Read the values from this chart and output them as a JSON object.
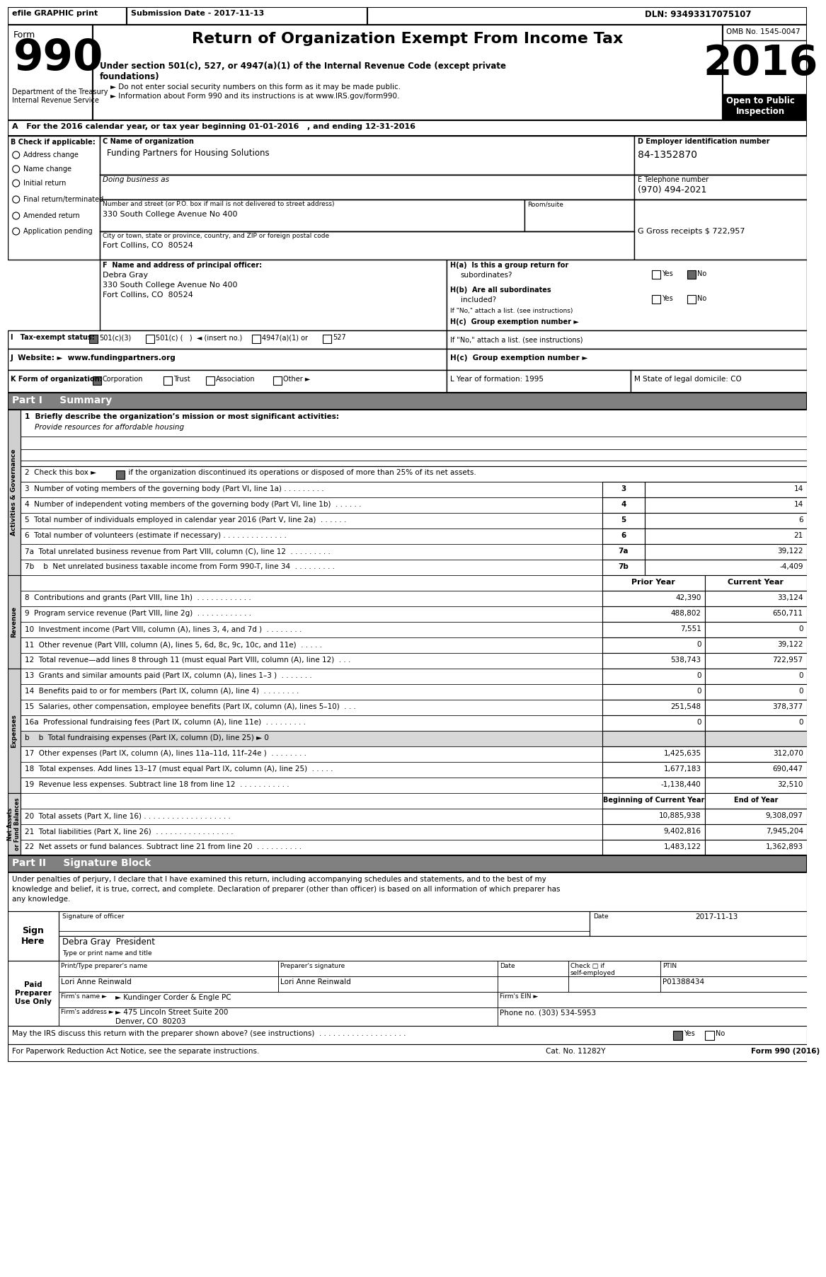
{
  "title": "Return of Organization Exempt From Income Tax",
  "subtitle_line1": "Under section 501(c), 527, or 4947(a)(1) of the Internal Revenue Code (except private",
  "subtitle_line2": "foundations)",
  "year": "2016",
  "omb": "OMB No. 1545-0047",
  "open_to_public": "Open to Public\nInspection",
  "efile_text": "efile GRAPHIC print",
  "submission_date": "Submission Date - 2017-11-13",
  "dln": "DLN: 93493317075107",
  "dept_line1": "Department of the Treasury",
  "dept_line2": "Internal Revenue Service",
  "bullet1": "► Do not enter social security numbers on this form as it may be made public.",
  "bullet2": "► Information about Form 990 and its instructions is at www.IRS.gov/form990.",
  "section_a": "A   For the 2016 calendar year, or tax year beginning 01-01-2016   , and ending 12-31-2016",
  "check_if": "B Check if applicable:",
  "checkboxes_b": [
    "Address change",
    "Name change",
    "Initial return",
    "Final return/terminated",
    "Amended return",
    "Application pending"
  ],
  "org_name_label": "C Name of organization",
  "org_name": "Funding Partners for Housing Solutions",
  "dba_label": "Doing business as",
  "address_label": "Number and street (or P.O. box if mail is not delivered to street address)",
  "room_label": "Room/suite",
  "address": "330 South College Avenue No 400",
  "city_label": "City or town, state or province, country, and ZIP or foreign postal code",
  "city": "Fort Collins, CO  80524",
  "ein_label": "D Employer identification number",
  "ein": "84-1352870",
  "phone_label": "E Telephone number",
  "phone": "(970) 494-2021",
  "gross_label": "G Gross receipts $ 722,957",
  "principal_label": "F  Name and address of principal officer:",
  "principal_name": "Debra Gray",
  "principal_addr1": "330 South College Avenue No 400",
  "principal_addr2": "Fort Collins, CO  80524",
  "ha_label": "H(a)  Is this a group return for",
  "ha_sub": "subordinates?",
  "hb_label": "H(b)  Are all subordinates",
  "hb_sub": "included?",
  "hb_note": "If \"No,\" attach a list. (see instructions)",
  "hc_label": "H(c)  Group exemption number ►",
  "tax_label": "I   Tax-exempt status:",
  "website_label": "J  Website: ►  www.fundingpartners.org",
  "form_type_label": "K Form of organization:",
  "year_form_label": "L Year of formation: 1995",
  "state_label": "M State of legal domicile: CO",
  "part1_title": "Part I     Summary",
  "line1_desc": "1  Briefly describe the organization’s mission or most significant activities:",
  "line1_val": "Provide resources for affordable housing",
  "line2_text": "2  Check this box ►",
  "line2_rest": " if the organization discontinued its operations or disposed of more than 25% of its net assets.",
  "lines_gov": [
    {
      "num": "3",
      "label": "Number of voting members of the governing body (Part VI, line 1a) . . . . . . . . .",
      "val": "14"
    },
    {
      "num": "4",
      "label": "Number of independent voting members of the governing body (Part VI, line 1b)  . . . . . .",
      "val": "14"
    },
    {
      "num": "5",
      "label": "Total number of individuals employed in calendar year 2016 (Part V, line 2a)  . . . . . .",
      "val": "6"
    },
    {
      "num": "6",
      "label": "Total number of volunteers (estimate if necessary) . . . . . . . . . . . . . .",
      "val": "21"
    },
    {
      "num": "7a",
      "label": "Total unrelated business revenue from Part VIII, column (C), line 12  . . . . . . . . .",
      "val": "39,122"
    },
    {
      "num": "7b",
      "label": "  b  Net unrelated business taxable income from Form 990-T, line 34  . . . . . . . . .",
      "val": "-4,409"
    }
  ],
  "rev_lines": [
    {
      "num": "8",
      "label": "Contributions and grants (Part VIII, line 1h)  . . . . . . . . . . . .",
      "prior": "42,390",
      "curr": "33,124"
    },
    {
      "num": "9",
      "label": "Program service revenue (Part VIII, line 2g)  . . . . . . . . . . . .",
      "prior": "488,802",
      "curr": "650,711"
    },
    {
      "num": "10",
      "label": "Investment income (Part VIII, column (A), lines 3, 4, and 7d )  . . . . . . . .",
      "prior": "7,551",
      "curr": "0"
    },
    {
      "num": "11",
      "label": "Other revenue (Part VIII, column (A), lines 5, 6d, 8c, 9c, 10c, and 11e)  . . . . .",
      "prior": "0",
      "curr": "39,122"
    },
    {
      "num": "12",
      "label": "Total revenue—add lines 8 through 11 (must equal Part VIII, column (A), line 12)  . . .",
      "prior": "538,743",
      "curr": "722,957"
    }
  ],
  "exp_lines": [
    {
      "num": "13",
      "label": "Grants and similar amounts paid (Part IX, column (A), lines 1–3 )  . . . . . . .",
      "prior": "0",
      "curr": "0",
      "gray": false
    },
    {
      "num": "14",
      "label": "Benefits paid to or for members (Part IX, column (A), line 4)  . . . . . . . .",
      "prior": "0",
      "curr": "0",
      "gray": false
    },
    {
      "num": "15",
      "label": "Salaries, other compensation, employee benefits (Part IX, column (A), lines 5–10)  . . .",
      "prior": "251,548",
      "curr": "378,377",
      "gray": false
    },
    {
      "num": "16a",
      "label": "Professional fundraising fees (Part IX, column (A), line 11e)  . . . . . . . . .",
      "prior": "0",
      "curr": "0",
      "gray": false
    },
    {
      "num": "b",
      "label": "  b  Total fundraising expenses (Part IX, column (D), line 25) ► 0",
      "prior": "",
      "curr": "",
      "gray": true
    },
    {
      "num": "17",
      "label": "Other expenses (Part IX, column (A), lines 11a–11d, 11f–24e )  . . . . . . . .",
      "prior": "1,425,635",
      "curr": "312,070",
      "gray": false
    },
    {
      "num": "18",
      "label": "Total expenses. Add lines 13–17 (must equal Part IX, column (A), line 25)  . . . . .",
      "prior": "1,677,183",
      "curr": "690,447",
      "gray": false
    },
    {
      "num": "19",
      "label": "Revenue less expenses. Subtract line 18 from line 12  . . . . . . . . . . .",
      "prior": "-1,138,440",
      "curr": "32,510",
      "gray": false
    }
  ],
  "na_lines": [
    {
      "num": "20",
      "label": "Total assets (Part X, line 16) . . . . . . . . . . . . . . . . . . .",
      "begin": "10,885,938",
      "end": "9,308,097"
    },
    {
      "num": "21",
      "label": "Total liabilities (Part X, line 26)  . . . . . . . . . . . . . . . . .",
      "begin": "9,402,816",
      "end": "7,945,204"
    },
    {
      "num": "22",
      "label": "Net assets or fund balances. Subtract line 21 from line 20  . . . . . . . . . .",
      "begin": "1,483,122",
      "end": "1,362,893"
    }
  ],
  "part2_title": "Part II     Signature Block",
  "sig_note": "Under penalties of perjury, I declare that I have examined this return, including accompanying schedules and statements, and to the best of my",
  "sig_note2": "knowledge and belief, it is true, correct, and complete. Declaration of preparer (other than officer) is based on all information of which preparer has",
  "sig_note3": "any knowledge.",
  "sig_date_val": "2017-11-13",
  "sig_officer_label": "Signature of officer",
  "sig_date_label": "Date",
  "sig_name": "Debra Gray  President",
  "sig_title_label": "Type or print name and title",
  "prep_name_label": "Print/Type preparer's name",
  "prep_sig_label": "Preparer's signature",
  "prep_date_label": "Date",
  "prep_check_label": "Check □ if\nself-employed",
  "prep_ptin_label": "PTIN",
  "prep_name": "Lori Anne Reinwald",
  "prep_sig": "Lori Anne Reinwald",
  "prep_ptin": "P01388434",
  "firm_name_label": "Firm's name",
  "firm_name": "► Kundinger Corder & Engle PC",
  "firm_ein_label": "Firm's EIN ►",
  "firm_addr_label": "Firm's address",
  "firm_addr": "► 475 Lincoln Street Suite 200",
  "firm_city": "Denver, CO  80203",
  "phone_no": "Phone no. (303) 534-5953",
  "discuss": "May the IRS discuss this return with the preparer shown above? (see instructions)  . . . . . . . . . . . . . . . . . . .",
  "cat_no": "Cat. No. 11282Y",
  "form_footer": "Form 990 (2016)"
}
